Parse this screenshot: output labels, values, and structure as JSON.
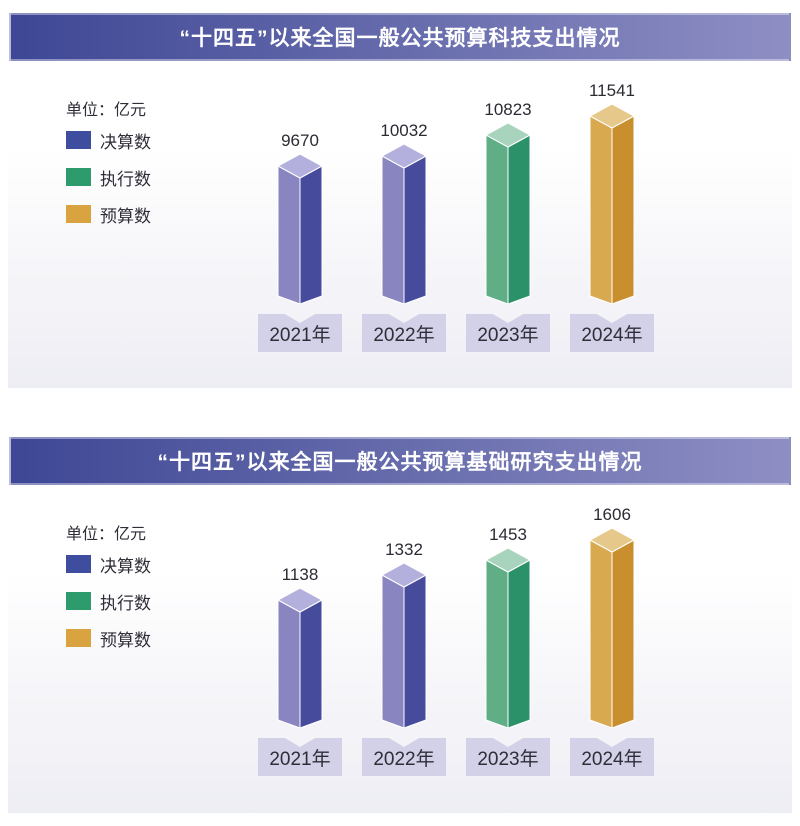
{
  "chart_data": [
    {
      "type": "bar",
      "title": "“十四五”以来全国一般公共预算科技支出情况",
      "unit_label": "单位：亿元",
      "categories": [
        "2021年",
        "2022年",
        "2023年",
        "2024年"
      ],
      "values": [
        9670,
        10032,
        10823,
        11541
      ],
      "bar_series": [
        "决算数",
        "决算数",
        "执行数",
        "预算数"
      ],
      "legend": [
        {
          "label": "决算数",
          "color": "#3f4d9e"
        },
        {
          "label": "执行数",
          "color": "#2e9b6c"
        },
        {
          "label": "预算数",
          "color": "#d9a33f"
        }
      ],
      "legend_position": "left",
      "ylim": [
        4800,
        11541
      ],
      "grid": false,
      "xlabel": "",
      "ylabel": "亿元"
    },
    {
      "type": "bar",
      "title": "“十四五”以来全国一般公共预算基础研究支出情况",
      "unit_label": "单位：亿元",
      "categories": [
        "2021年",
        "2022年",
        "2023年",
        "2024年"
      ],
      "values": [
        1138,
        1332,
        1453,
        1606
      ],
      "bar_series": [
        "决算数",
        "决算数",
        "执行数",
        "预算数"
      ],
      "legend": [
        {
          "label": "决算数",
          "color": "#3f4d9e"
        },
        {
          "label": "执行数",
          "color": "#2e9b6c"
        },
        {
          "label": "预算数",
          "color": "#d9a33f"
        }
      ],
      "legend_position": "left",
      "ylim": [
        200,
        1606
      ],
      "grid": false,
      "xlabel": "",
      "ylabel": "亿元"
    }
  ],
  "palette": {
    "决算数": {
      "left": "#8885c0",
      "right": "#474b9c",
      "top": "#b3b0dd"
    },
    "执行数": {
      "left": "#5fae85",
      "right": "#2a9168",
      "top": "#a8d3bc"
    },
    "预算数": {
      "left": "#d9a94f",
      "right": "#c98f2e",
      "top": "#e6c98a"
    }
  },
  "style": {
    "title_gradient_left": "#3e4795",
    "title_gradient_right": "#8e8ec4",
    "panel_gradient_bottom": "#ededf4",
    "plate_color": "#d3d1e7",
    "text_color": "#2e2e38"
  }
}
